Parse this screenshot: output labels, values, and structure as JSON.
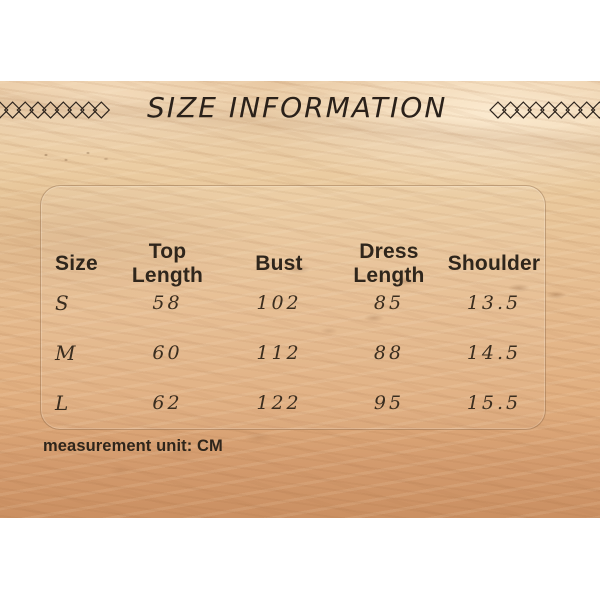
{
  "title": {
    "text": "SIZE INFORMATION",
    "left_ornament": "◇◇◇◇◇◇◇◇◇",
    "right_ornament": "◇◇◇◇◇◇◇◇◇◇"
  },
  "chart_data": {
    "type": "table",
    "title": "SIZE INFORMATION",
    "columns": [
      "Size",
      "Top Length",
      "Bust",
      "Dress Length",
      "Shoulder"
    ],
    "rows": [
      [
        "S",
        "58",
        "102",
        "85",
        "13.5"
      ],
      [
        "M",
        "60",
        "112",
        "88",
        "14.5"
      ],
      [
        "L",
        "62",
        "122",
        "95",
        "15.5"
      ]
    ],
    "unit_note": "measurement unit: CM",
    "measurement_unit": "CM"
  },
  "colors": {
    "text_dark": "#2c231c",
    "sand_light": "#eed3ae",
    "sand_deep": "#d89d6e",
    "panel_border": "rgba(130,90,55,0.40)",
    "letterbox_white": "#ffffff"
  }
}
